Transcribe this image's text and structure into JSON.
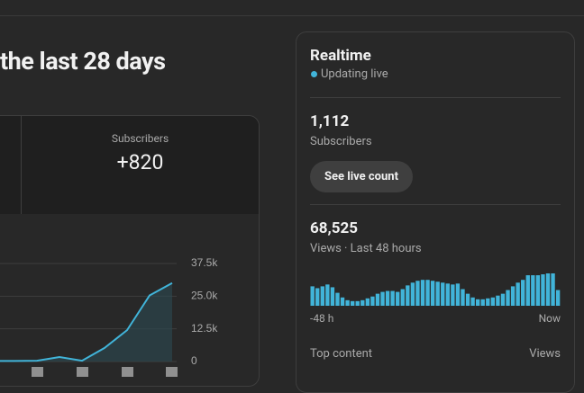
{
  "header": {
    "title": "the last 28 days"
  },
  "overview": {
    "metric_label": "Subscribers",
    "metric_value": "+820"
  },
  "realtime": {
    "title": "Realtime",
    "status": "Updating live",
    "subscribers_value": "1,112",
    "subscribers_label": "Subscribers",
    "button": "See live count",
    "views_value": "68,525",
    "views_label": "Views · Last 48 hours",
    "axis_start": "-48 h",
    "axis_end": "Now",
    "top_content": "Top content",
    "top_content_metric": "Views"
  },
  "chart_data": [
    {
      "type": "line",
      "categories": [
        null,
        null,
        null,
        null,
        null,
        null,
        null,
        null
      ],
      "values": [
        200,
        300,
        1700,
        300,
        5200,
        12000,
        25300,
        30000
      ],
      "color": "#41b4d9",
      "ylim": [
        0,
        37500
      ],
      "yticks": [
        0,
        {
          "value": 12500,
          "label": "12.5k"
        },
        {
          "value": 25000,
          "label": "25.0k"
        },
        {
          "value": 37500,
          "label": "37.5k"
        }
      ],
      "grid": true
    },
    {
      "type": "bar",
      "values": [
        1260,
        1140,
        1260,
        1380,
        1200,
        840,
        540,
        360,
        300,
        300,
        360,
        480,
        600,
        780,
        900,
        960,
        960,
        900,
        1080,
        1320,
        1500,
        1620,
        1680,
        1680,
        1620,
        1560,
        1500,
        1440,
        1380,
        1440,
        1080,
        780,
        540,
        420,
        420,
        480,
        540,
        660,
        780,
        1020,
        1260,
        1500,
        1680,
        1980,
        1980,
        1980,
        2040,
        2100,
        2100,
        1020
      ],
      "color": "#41b4d9"
    }
  ]
}
